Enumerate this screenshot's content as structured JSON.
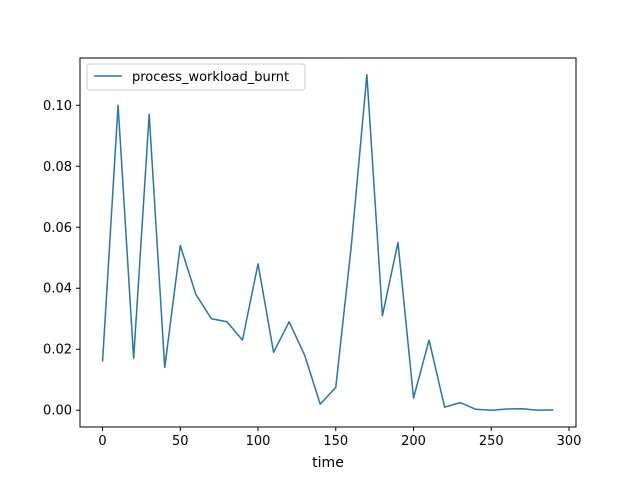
{
  "chart_data": {
    "type": "line",
    "title": "",
    "xlabel": "time",
    "ylabel": "",
    "xlim": [
      -14.5,
      304.5
    ],
    "ylim": [
      -0.0055,
      0.1155
    ],
    "xticks": [
      0,
      50,
      100,
      150,
      200,
      250,
      300
    ],
    "xtick_labels": [
      "0",
      "50",
      "100",
      "150",
      "200",
      "250",
      "300"
    ],
    "yticks": [
      0.0,
      0.02,
      0.04,
      0.06,
      0.08,
      0.1
    ],
    "ytick_labels": [
      "0.00",
      "0.02",
      "0.04",
      "0.06",
      "0.08",
      "0.10"
    ],
    "grid": false,
    "legend_position": "upper-left",
    "x": [
      0,
      10,
      20,
      30,
      40,
      50,
      60,
      70,
      80,
      90,
      100,
      110,
      120,
      130,
      140,
      150,
      160,
      170,
      180,
      190,
      200,
      210,
      220,
      230,
      240,
      250,
      260,
      270,
      280,
      290
    ],
    "series": [
      {
        "name": "process_workload_burnt",
        "color": "#1f77b4",
        "values": [
          0.016,
          0.1,
          0.017,
          0.097,
          0.014,
          0.054,
          0.038,
          0.03,
          0.029,
          0.023,
          0.048,
          0.019,
          0.029,
          0.018,
          0.002,
          0.0075,
          0.054,
          0.11,
          0.031,
          0.055,
          0.004,
          0.023,
          0.001,
          0.0025,
          0.0003,
          0.0,
          0.0004,
          0.0005,
          0.0,
          0.0001
        ]
      }
    ]
  }
}
